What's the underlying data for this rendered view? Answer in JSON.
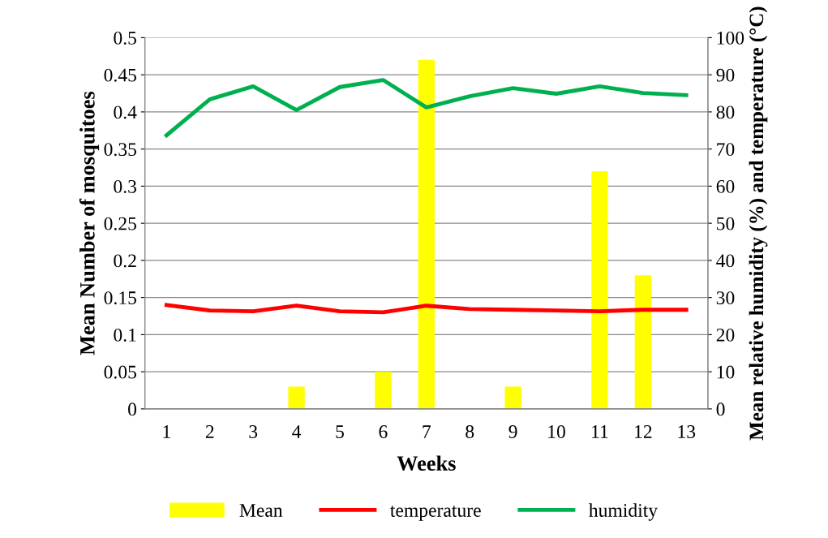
{
  "chart_data": {
    "type": "bar",
    "xlabel": "Weeks",
    "ylabel": "Mean Number of mosquitoes",
    "y2label": "Mean relative humidity (%) and temperature (°C)",
    "categories": [
      "1",
      "2",
      "3",
      "4",
      "5",
      "6",
      "7",
      "8",
      "9",
      "10",
      "11",
      "12",
      "13"
    ],
    "series": [
      {
        "name": "Mean",
        "color": "#ffff00",
        "values": [
          0,
          0,
          0,
          0.03,
          0,
          0.05,
          0.47,
          0,
          0.03,
          0,
          0.32,
          0.18,
          0
        ]
      },
      {
        "name": "temperature",
        "type": "line",
        "axis": "y2",
        "color": "#ff0000",
        "values": [
          28,
          26.5,
          26.3,
          27.8,
          26.3,
          26,
          27.8,
          26.9,
          26.7,
          26.5,
          26.3,
          26.7,
          26.7
        ]
      },
      {
        "name": "humidity",
        "type": "line",
        "axis": "y2",
        "color": "#00b050",
        "values": [
          73.7,
          83.4,
          86.9,
          80.5,
          86.7,
          88.6,
          81.2,
          84.2,
          86.4,
          84.9,
          86.9,
          85.1,
          84.5
        ]
      }
    ],
    "ylim": [
      0,
      0.5
    ],
    "yticks": [
      0,
      0.05,
      0.1,
      0.15,
      0.2,
      0.25,
      0.3,
      0.35,
      0.4,
      0.45,
      0.5
    ],
    "y2lim": [
      0,
      100
    ],
    "y2ticks": [
      0,
      10,
      20,
      30,
      40,
      50,
      60,
      70,
      80,
      90,
      100
    ],
    "grid": "y",
    "legend": "bottom"
  }
}
